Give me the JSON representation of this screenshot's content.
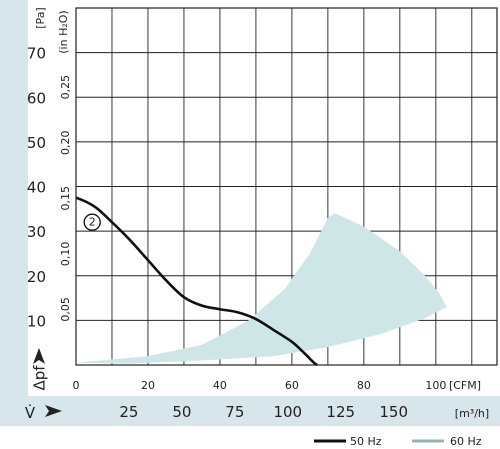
{
  "chart_data": {
    "type": "line",
    "title": "",
    "y_unit_pa": "[Pa]",
    "y_unit_inh2o": "(in H₂O)",
    "y_label": "Δpf",
    "x_unit_cfm": "[CFM]",
    "x_unit_m3h": "[m³/h]",
    "x_label": "V̇",
    "y_pa_ticks": [
      "10",
      "20",
      "30",
      "40",
      "50",
      "60",
      "70"
    ],
    "y_pa_tick_values": [
      10,
      20,
      30,
      40,
      50,
      60,
      70
    ],
    "y_inh2o_ticks": [
      "0,05",
      "0,10",
      "0,15",
      "0,20",
      "0,25"
    ],
    "y_inh2o_tick_values": [
      0.05,
      0.1,
      0.15,
      0.2,
      0.25
    ],
    "x_cfm_ticks": [
      "0",
      "20",
      "40",
      "60",
      "80",
      "100"
    ],
    "x_cfm_tick_values": [
      0,
      20,
      40,
      60,
      80,
      100
    ],
    "x_m3h_ticks": [
      "25",
      "50",
      "75",
      "100",
      "125",
      "150"
    ],
    "x_m3h_tick_values": [
      25,
      50,
      75,
      100,
      125,
      150
    ],
    "xlim_cfm": [
      0,
      117
    ],
    "ylim_pa": [
      0,
      80
    ],
    "grid": true,
    "series": [
      {
        "name": "50 Hz",
        "color": "#111111",
        "points": [
          [
            0,
            37.5
          ],
          [
            3,
            36.5
          ],
          [
            6,
            35
          ],
          [
            10,
            32
          ],
          [
            15,
            28
          ],
          [
            20,
            23.5
          ],
          [
            25,
            19
          ],
          [
            30,
            15.2
          ],
          [
            35,
            13.3
          ],
          [
            40,
            12.5
          ],
          [
            45,
            11.8
          ],
          [
            50,
            10.3
          ],
          [
            55,
            7.8
          ],
          [
            60,
            5.2
          ],
          [
            63,
            3
          ],
          [
            66,
            0.6
          ],
          [
            67,
            0
          ]
        ]
      },
      {
        "name": "60 Hz",
        "color": "#cfe6e6",
        "type": "area",
        "polygon": [
          [
            0,
            0.5
          ],
          [
            20,
            2
          ],
          [
            35,
            4.5
          ],
          [
            48,
            10
          ],
          [
            58,
            17
          ],
          [
            65,
            25
          ],
          [
            70,
            33
          ],
          [
            72,
            34
          ],
          [
            80,
            31
          ],
          [
            90,
            25.5
          ],
          [
            97,
            20
          ],
          [
            101,
            16
          ],
          [
            103,
            13
          ],
          [
            97,
            10.5
          ],
          [
            85,
            7
          ],
          [
            70,
            4
          ],
          [
            55,
            2
          ],
          [
            35,
            1
          ],
          [
            15,
            0.3
          ],
          [
            0,
            0.5
          ]
        ]
      }
    ],
    "curve_label": "2",
    "curve_label_at": [
      4.5,
      32
    ],
    "legend": [
      {
        "label": "50 Hz",
        "color": "#111111"
      },
      {
        "label": "60 Hz",
        "color": "#93b4b4"
      }
    ],
    "legend_position": "bottom-right",
    "colors": {
      "band": "#d6e6eb",
      "grid": "#222222",
      "plot_bg": "#ffffff"
    }
  }
}
